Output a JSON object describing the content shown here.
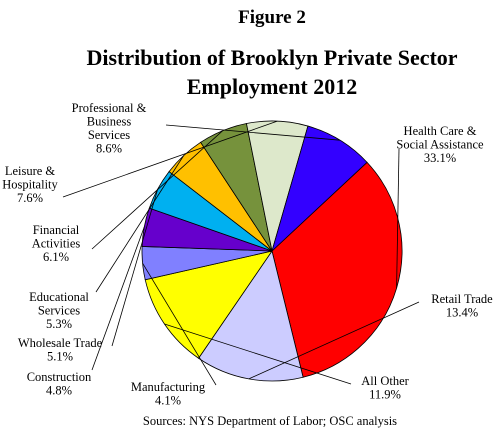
{
  "chart_data": {
    "type": "pie",
    "figure_label": "Figure 2",
    "title_lines": [
      "Distribution of Brooklyn Private Sector",
      "Employment 2012"
    ],
    "source": "Sources: NYS Department of Labor; OSC analysis",
    "slices": [
      {
        "label_lines": [
          "Health Care &",
          "Social Assistance"
        ],
        "value_label": "33.1%",
        "value": 33.1,
        "color": "#ff0000"
      },
      {
        "label_lines": [
          "Retail Trade"
        ],
        "value_label": "13.4%",
        "value": 13.4,
        "color": "#ccccff"
      },
      {
        "label_lines": [
          "All Other"
        ],
        "value_label": "11.9%",
        "value": 11.9,
        "color": "#ffff00"
      },
      {
        "label_lines": [
          "Manufacturing"
        ],
        "value_label": "4.1%",
        "value": 4.1,
        "color": "#8080ff"
      },
      {
        "label_lines": [
          "Construction"
        ],
        "value_label": "4.8%",
        "value": 4.8,
        "color": "#6600cc"
      },
      {
        "label_lines": [
          "Wholesale Trade"
        ],
        "value_label": "5.1%",
        "value": 5.1,
        "color": "#00b0f0"
      },
      {
        "label_lines": [
          "Educational",
          "Services"
        ],
        "value_label": "5.3%",
        "value": 5.3,
        "color": "#ffc000"
      },
      {
        "label_lines": [
          "Financial",
          "Activities"
        ],
        "value_label": "6.1%",
        "value": 6.1,
        "color": "#76923c"
      },
      {
        "label_lines": [
          "Leisure &",
          "Hospitality"
        ],
        "value_label": "7.6%",
        "value": 7.6,
        "color": "#dde8cb"
      },
      {
        "label_lines": [
          "Professional &",
          "Business",
          "Services"
        ],
        "value_label": "8.6%",
        "value": 8.6,
        "color": "#3300ff"
      }
    ]
  }
}
